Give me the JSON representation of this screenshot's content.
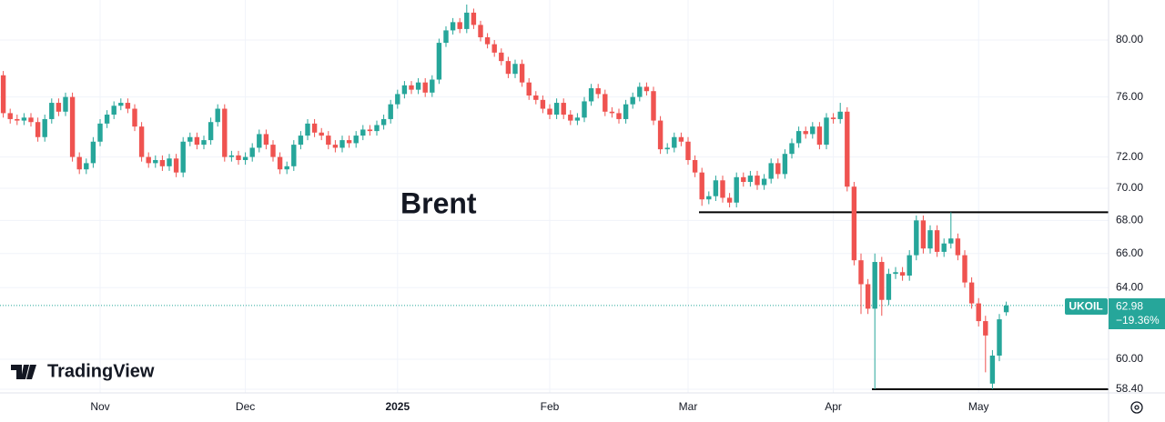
{
  "chart_data": {
    "type": "candlestick",
    "symbol_note": "Brent",
    "logo": "TradingView",
    "log_scale": true,
    "grid": true,
    "up_color": "#26a69a",
    "down_color": "#ef5350",
    "ylim": [
      58.21,
      82.94
    ],
    "yticks": [
      {
        "value": 58.4,
        "label": "58.40"
      },
      {
        "value": 60,
        "label": "60.00"
      },
      {
        "value": 64,
        "label": "64.00"
      },
      {
        "value": 66,
        "label": "66.00"
      },
      {
        "value": 68,
        "label": "68.00"
      },
      {
        "value": 70,
        "label": "70.00"
      },
      {
        "value": 72,
        "label": "72.00"
      },
      {
        "value": 76,
        "label": "76.00"
      },
      {
        "value": 80,
        "label": "80.00"
      }
    ],
    "hlines": [
      68.5,
      58.4
    ],
    "last_price": {
      "symbol": "UKOIL",
      "value": 62.98,
      "change": "−19.36%"
    },
    "categories": [
      null,
      null,
      null,
      null,
      null,
      null,
      null,
      null,
      null,
      null,
      null,
      null,
      null,
      null,
      "Nov",
      null,
      null,
      null,
      null,
      null,
      null,
      null,
      null,
      null,
      null,
      null,
      null,
      null,
      null,
      null,
      null,
      null,
      null,
      null,
      null,
      "Dec",
      null,
      null,
      null,
      null,
      null,
      null,
      null,
      null,
      null,
      null,
      null,
      null,
      null,
      null,
      null,
      null,
      null,
      null,
      null,
      null,
      null,
      "2025",
      null,
      null,
      null,
      null,
      null,
      null,
      null,
      null,
      null,
      null,
      null,
      null,
      null,
      null,
      null,
      null,
      null,
      null,
      null,
      null,
      null,
      "Feb",
      null,
      null,
      null,
      null,
      null,
      null,
      null,
      null,
      null,
      null,
      null,
      null,
      null,
      null,
      null,
      null,
      null,
      null,
      null,
      "Mar",
      null,
      null,
      null,
      null,
      null,
      null,
      null,
      null,
      null,
      null,
      null,
      null,
      null,
      null,
      null,
      null,
      null,
      null,
      null,
      null,
      "Apr",
      null,
      null,
      null,
      null,
      null,
      null,
      null,
      null,
      null,
      null,
      null,
      null,
      null,
      null,
      null,
      null,
      null,
      null,
      null,
      null,
      "May",
      null,
      null,
      null,
      null
    ],
    "open": [
      77.5,
      74.9,
      74.5,
      74.4,
      74.6,
      74.3,
      73.3,
      74.5,
      75.6,
      75.0,
      76.0,
      72.0,
      71.2,
      71.6,
      73.0,
      74.2,
      74.8,
      75.4,
      75.6,
      75.2,
      74.0,
      72.0,
      71.6,
      71.8,
      71.4,
      71.9,
      71.0,
      73.0,
      73.3,
      72.8,
      73.1,
      74.3,
      75.2,
      72.0,
      72.1,
      71.8,
      72.0,
      72.6,
      73.5,
      72.8,
      72.0,
      71.2,
      71.4,
      72.8,
      73.4,
      74.2,
      73.6,
      73.4,
      72.8,
      72.6,
      73.1,
      72.9,
      73.4,
      73.8,
      73.7,
      74.1,
      74.5,
      75.5,
      76.2,
      76.8,
      76.5,
      77.0,
      76.3,
      77.2,
      79.8,
      80.7,
      81.3,
      80.8,
      82.0,
      81.1,
      80.2,
      79.7,
      79.1,
      78.5,
      77.6,
      78.3,
      77.0,
      76.1,
      75.8,
      75.2,
      74.8,
      75.6,
      74.8,
      74.4,
      74.6,
      75.7,
      76.6,
      76.2,
      75.0,
      74.9,
      74.5,
      75.5,
      76.0,
      76.7,
      76.4,
      74.4,
      72.5,
      72.6,
      73.3,
      73.0,
      71.8,
      71.0,
      69.3,
      69.5,
      70.5,
      69.4,
      69.1,
      70.7,
      70.4,
      70.8,
      70.2,
      70.6,
      71.6,
      70.9,
      72.2,
      72.9,
      73.7,
      73.5,
      74.0,
      72.8,
      74.6,
      74.5,
      75.0,
      70.1,
      65.6,
      64.2,
      62.8,
      65.5,
      63.3,
      64.8,
      64.9,
      64.7,
      65.9,
      68.0,
      66.3,
      67.4,
      66.1,
      66.6,
      66.9,
      65.9,
      64.3,
      63.1,
      62.1,
      58.7,
      60.2,
      62.6
    ],
    "high": [
      77.8,
      75.2,
      74.8,
      74.9,
      74.9,
      74.6,
      74.8,
      75.9,
      75.9,
      76.3,
      76.3,
      72.3,
      71.9,
      73.3,
      74.5,
      75.1,
      75.7,
      75.9,
      75.9,
      75.5,
      74.3,
      72.3,
      72.1,
      72.1,
      72.2,
      72.2,
      73.3,
      73.6,
      73.6,
      73.4,
      74.6,
      75.5,
      75.5,
      72.4,
      72.4,
      72.3,
      72.9,
      73.8,
      73.8,
      73.1,
      72.3,
      71.7,
      73.1,
      73.7,
      74.5,
      74.5,
      73.9,
      73.7,
      73.1,
      73.4,
      73.4,
      73.7,
      74.1,
      74.1,
      74.4,
      74.8,
      75.8,
      76.5,
      77.1,
      77.1,
      77.3,
      77.3,
      77.5,
      80.1,
      81.0,
      81.6,
      81.6,
      82.6,
      82.3,
      81.4,
      80.5,
      80.0,
      79.4,
      78.8,
      78.6,
      78.6,
      77.3,
      76.4,
      76.1,
      75.5,
      75.9,
      75.9,
      75.1,
      74.9,
      76.0,
      76.9,
      76.9,
      76.5,
      75.3,
      75.2,
      75.8,
      76.3,
      77.0,
      77.0,
      76.7,
      74.7,
      72.9,
      73.6,
      73.6,
      73.3,
      72.1,
      71.3,
      69.8,
      70.8,
      70.8,
      69.7,
      71.0,
      71.0,
      71.1,
      71.1,
      70.9,
      71.9,
      71.9,
      72.5,
      73.2,
      74.0,
      74.0,
      74.3,
      74.3,
      74.9,
      74.9,
      75.6,
      75.3,
      70.4,
      66.0,
      64.5,
      66.0,
      65.8,
      65.1,
      65.2,
      65.2,
      66.2,
      68.3,
      68.3,
      67.7,
      67.7,
      66.9,
      68.5,
      67.2,
      66.2,
      64.6,
      63.4,
      62.4,
      60.5,
      62.5,
      63.2
    ],
    "low": [
      74.6,
      74.2,
      74.1,
      74.1,
      74.0,
      73.0,
      73.0,
      74.2,
      74.7,
      74.7,
      71.7,
      70.9,
      70.9,
      71.3,
      72.7,
      73.9,
      74.5,
      75.1,
      74.9,
      73.7,
      71.7,
      71.3,
      71.3,
      71.1,
      71.1,
      70.7,
      70.7,
      72.7,
      72.5,
      72.5,
      72.8,
      74.0,
      71.7,
      71.7,
      71.5,
      71.5,
      71.7,
      72.3,
      72.5,
      71.7,
      70.9,
      70.9,
      71.1,
      72.5,
      73.1,
      73.3,
      73.1,
      72.5,
      72.3,
      72.3,
      72.6,
      72.6,
      73.1,
      73.4,
      73.4,
      73.8,
      74.2,
      75.2,
      75.9,
      76.2,
      76.2,
      76.0,
      76.0,
      76.9,
      79.5,
      80.4,
      80.5,
      80.5,
      80.8,
      79.9,
      79.4,
      78.8,
      78.2,
      77.3,
      77.3,
      76.7,
      75.8,
      75.5,
      74.9,
      74.5,
      74.5,
      74.5,
      74.1,
      74.1,
      74.3,
      75.4,
      75.9,
      74.7,
      74.6,
      74.2,
      74.2,
      75.2,
      75.7,
      76.1,
      74.1,
      72.2,
      72.2,
      72.3,
      72.7,
      71.5,
      70.7,
      68.9,
      69.0,
      69.2,
      69.1,
      68.8,
      68.8,
      70.1,
      70.1,
      69.9,
      69.9,
      70.3,
      70.6,
      70.6,
      71.9,
      72.6,
      73.2,
      73.2,
      72.5,
      72.5,
      74.2,
      74.2,
      69.8,
      65.3,
      62.5,
      62.5,
      58.4,
      62.4,
      63.0,
      64.5,
      64.4,
      64.4,
      65.6,
      66.0,
      66.0,
      65.8,
      65.8,
      66.3,
      65.6,
      64.0,
      62.8,
      61.8,
      59.3,
      58.4,
      59.9,
      62.4
    ],
    "close": [
      74.9,
      74.5,
      74.4,
      74.6,
      74.3,
      73.3,
      74.5,
      75.6,
      75.0,
      76.0,
      72.0,
      71.2,
      71.6,
      73.0,
      74.2,
      74.8,
      75.4,
      75.6,
      75.2,
      74.0,
      72.0,
      71.6,
      71.8,
      71.4,
      71.9,
      71.0,
      73.0,
      73.3,
      72.8,
      73.1,
      74.3,
      75.2,
      72.0,
      72.1,
      71.8,
      72.0,
      72.6,
      73.5,
      72.8,
      72.0,
      71.2,
      71.4,
      72.8,
      73.4,
      74.2,
      73.6,
      73.4,
      72.8,
      72.6,
      73.1,
      72.9,
      73.4,
      73.8,
      73.7,
      74.1,
      74.5,
      75.5,
      76.2,
      76.8,
      76.5,
      77.0,
      76.3,
      77.2,
      79.8,
      80.7,
      81.3,
      80.8,
      82.0,
      81.1,
      80.2,
      79.7,
      79.1,
      78.5,
      77.6,
      78.3,
      77.0,
      76.1,
      75.8,
      75.2,
      74.8,
      75.6,
      74.8,
      74.4,
      74.6,
      75.7,
      76.6,
      76.2,
      75.0,
      74.9,
      74.5,
      75.5,
      76.0,
      76.7,
      76.4,
      74.4,
      72.5,
      72.6,
      73.3,
      73.0,
      71.8,
      71.0,
      69.3,
      69.5,
      70.5,
      69.4,
      69.1,
      70.7,
      70.4,
      70.8,
      70.2,
      70.6,
      71.6,
      70.9,
      72.2,
      72.9,
      73.7,
      73.5,
      74.0,
      72.8,
      74.6,
      74.5,
      75.0,
      70.1,
      65.6,
      64.2,
      62.8,
      65.5,
      63.3,
      64.8,
      64.9,
      64.7,
      65.9,
      68.0,
      66.3,
      67.4,
      66.1,
      66.6,
      66.9,
      65.9,
      64.3,
      63.1,
      62.1,
      61.3,
      60.2,
      62.2,
      62.98
    ]
  }
}
